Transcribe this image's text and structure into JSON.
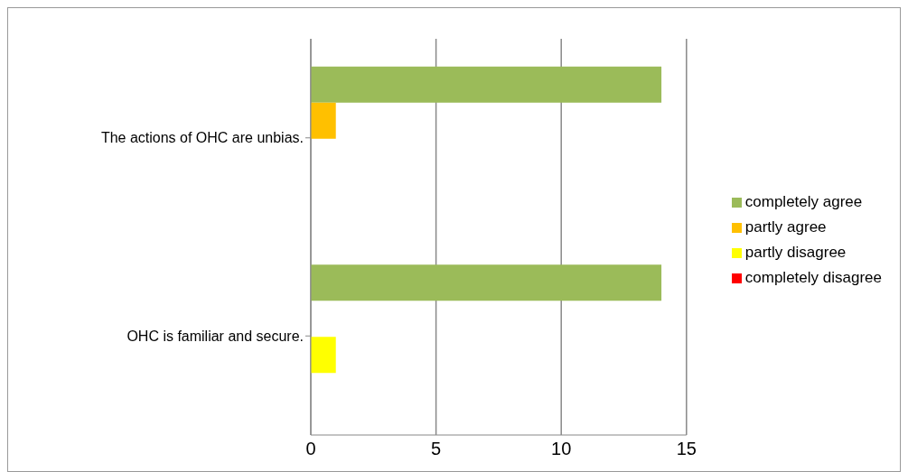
{
  "chart_data": {
    "type": "bar",
    "orientation": "horizontal",
    "categories": [
      "The actions of OHC are unbias.",
      "OHC is familiar and secure."
    ],
    "series": [
      {
        "name": "completely agree",
        "color": "#9bbb59",
        "values": [
          14,
          14
        ]
      },
      {
        "name": "partly agree",
        "color": "#ffc000",
        "values": [
          1,
          0
        ]
      },
      {
        "name": "partly disagree",
        "color": "#ffff00",
        "values": [
          0,
          1
        ]
      },
      {
        "name": "completely disagree",
        "color": "#ff0000",
        "values": [
          0,
          0
        ]
      }
    ],
    "xlim": [
      0,
      15
    ],
    "xticks": [
      0,
      5,
      10,
      15
    ],
    "grid": "x",
    "legend": "right"
  }
}
